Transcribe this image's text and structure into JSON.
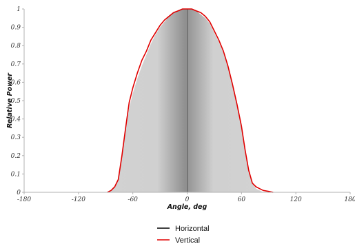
{
  "chart_data": {
    "type": "area",
    "title": "",
    "xlabel": "Angle, deg",
    "ylabel": "Relative Power",
    "xlim": [
      -180,
      180
    ],
    "ylim": [
      0,
      1
    ],
    "x_ticks": [
      "-180",
      "-120",
      "-60",
      "0",
      "60",
      "120",
      "180"
    ],
    "y_ticks": [
      "0",
      "0.1",
      "0.2",
      "0.3",
      "0.4",
      "0.5",
      "0.6",
      "0.7",
      "0.8",
      "0.9",
      "1"
    ],
    "grid": false,
    "legend_position": "bottom-center",
    "series": [
      {
        "name": "Horizontal",
        "color": "#000000",
        "style": "filled-gray",
        "x": [
          -88,
          -84,
          -80,
          -76,
          -72,
          -68,
          -64,
          -60,
          -55,
          -50,
          -45,
          -40,
          -35,
          -30,
          -25,
          -20,
          -15,
          -10,
          -5,
          0,
          5,
          10,
          15,
          20,
          25,
          30,
          35,
          40,
          45,
          50,
          55,
          60,
          64,
          68,
          72,
          76,
          80,
          84
        ],
        "values": [
          0.0,
          0.01,
          0.03,
          0.07,
          0.19,
          0.34,
          0.46,
          0.54,
          0.62,
          0.69,
          0.75,
          0.81,
          0.86,
          0.9,
          0.93,
          0.96,
          0.98,
          0.99,
          1.0,
          1.0,
          1.0,
          0.99,
          0.97,
          0.95,
          0.92,
          0.87,
          0.82,
          0.76,
          0.68,
          0.58,
          0.47,
          0.35,
          0.21,
          0.11,
          0.05,
          0.02,
          0.01,
          0.0
        ]
      },
      {
        "name": "Vertical",
        "color": "#e00000",
        "style": "line",
        "x": [
          -88,
          -84,
          -80,
          -76,
          -72,
          -68,
          -64,
          -60,
          -55,
          -50,
          -45,
          -40,
          -35,
          -30,
          -25,
          -20,
          -15,
          -10,
          -5,
          0,
          5,
          10,
          15,
          20,
          25,
          30,
          35,
          40,
          45,
          50,
          55,
          60,
          64,
          68,
          72,
          76,
          80,
          84,
          90,
          95
        ],
        "values": [
          0.0,
          0.01,
          0.03,
          0.07,
          0.2,
          0.35,
          0.49,
          0.57,
          0.65,
          0.72,
          0.77,
          0.83,
          0.87,
          0.91,
          0.94,
          0.96,
          0.98,
          0.99,
          1.0,
          1.0,
          1.0,
          0.99,
          0.98,
          0.96,
          0.93,
          0.88,
          0.83,
          0.77,
          0.69,
          0.59,
          0.48,
          0.36,
          0.23,
          0.12,
          0.05,
          0.03,
          0.02,
          0.01,
          0.005,
          0.0
        ]
      }
    ]
  }
}
